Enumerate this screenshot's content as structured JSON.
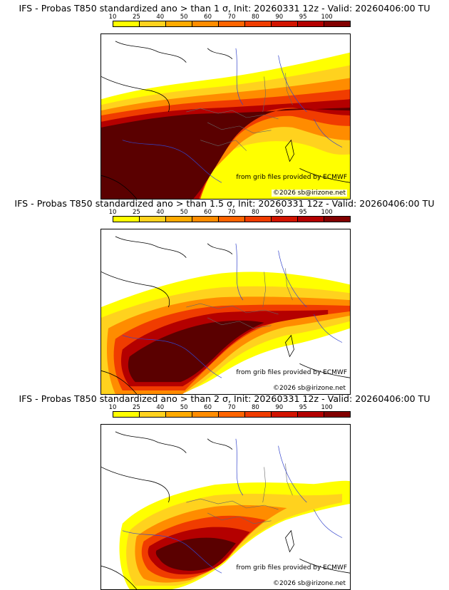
{
  "legend": {
    "ticks": [
      "10",
      "25",
      "40",
      "50",
      "60",
      "70",
      "80",
      "90",
      "95",
      "100"
    ],
    "colors": [
      "#ffff00",
      "#ffd21e",
      "#ffaa00",
      "#ff8c00",
      "#ff6400",
      "#f03c00",
      "#d21400",
      "#b40000",
      "#820000",
      "#5a0000"
    ]
  },
  "panels": [
    {
      "title": "IFS - Probas T850  standardized ano > than 1 σ, Init: 20260331 12z - Valid: 20260406:00 TU",
      "threshold_sigma": 1,
      "source_text": "from grib files provided by ECMWF",
      "copyright_text": "©2026 sb@irizone.net"
    },
    {
      "title": "IFS - Probas T850  standardized ano > than 1.5 σ, Init: 20260331 12z - Valid: 20260406:00 TU",
      "threshold_sigma": 1.5,
      "source_text": "from grib files provided by ECMWF",
      "copyright_text": "©2026 sb@irizone.net"
    },
    {
      "title": "IFS - Probas T850  standardized ano > than 2 σ, Init: 20260331 12z - Valid: 20260406:00 TU",
      "threshold_sigma": 2,
      "source_text": "from grib files provided by ECMWF",
      "copyright_text": "©2026 sb@irizone.net"
    }
  ]
}
